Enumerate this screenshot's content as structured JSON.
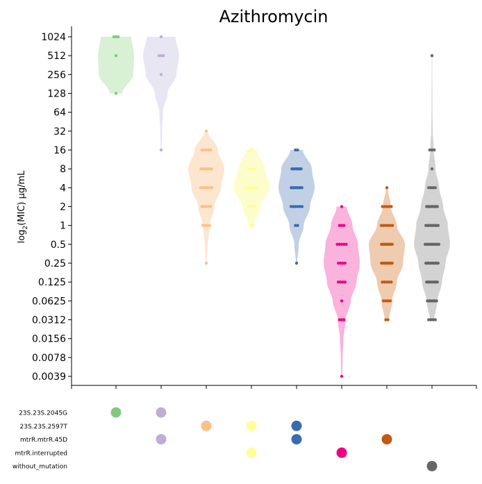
{
  "chart_data": {
    "type": "violin",
    "title": "Azithromycin",
    "ylabel_prefix": "log",
    "ylabel_sub": "2",
    "ylabel_suffix": "(MIC) μg/mL",
    "y_scale": "log2",
    "y_ticks": [
      {
        "value": 1024,
        "label": "1024"
      },
      {
        "value": 512,
        "label": "512"
      },
      {
        "value": 256,
        "label": "256"
      },
      {
        "value": 128,
        "label": "128"
      },
      {
        "value": 64,
        "label": "64"
      },
      {
        "value": 32,
        "label": "32"
      },
      {
        "value": 16,
        "label": "16"
      },
      {
        "value": 8,
        "label": "8"
      },
      {
        "value": 4,
        "label": "4"
      },
      {
        "value": 2,
        "label": "2"
      },
      {
        "value": 1,
        "label": "1"
      },
      {
        "value": 0.5,
        "label": "0.5"
      },
      {
        "value": 0.25,
        "label": "0.25"
      },
      {
        "value": 0.125,
        "label": "0.125"
      },
      {
        "value": 0.0625,
        "label": "0.0625"
      },
      {
        "value": 0.03125,
        "label": "0.0312"
      },
      {
        "value": 0.015625,
        "label": "0.0156"
      },
      {
        "value": 0.0078125,
        "label": "0.0078"
      },
      {
        "value": 0.00390625,
        "label": "0.0039"
      }
    ],
    "ylim": [
      0.0039,
      1024
    ],
    "grid": false,
    "mutations": [
      "23S.23S.2045G",
      "23S.23S.2597T",
      "mtrR.mtrR.45D",
      "mtrR.interrupted",
      "without_mutation"
    ],
    "groups": [
      {
        "violin_color": "#d8f0d4",
        "point_color": "#7fc97f",
        "range": [
          128,
          1024
        ],
        "profile": [
          [
            128,
            0.35
          ],
          [
            256,
            0.95
          ],
          [
            512,
            1.0
          ],
          [
            1024,
            0.85
          ]
        ],
        "points": [
          [
            1024,
            3
          ],
          [
            512,
            1
          ],
          [
            128,
            1
          ]
        ],
        "mutations": [
          "23S.23S.2045G"
        ]
      },
      {
        "violin_color": "#e8e6f3",
        "point_color": "#beaed4",
        "range": [
          16,
          1024
        ],
        "profile": [
          [
            16,
            0.03
          ],
          [
            32,
            0.05
          ],
          [
            64,
            0.1
          ],
          [
            128,
            0.35
          ],
          [
            256,
            0.85
          ],
          [
            512,
            1.0
          ],
          [
            1024,
            0.8
          ]
        ],
        "points": [
          [
            1024,
            1
          ],
          [
            512,
            3
          ],
          [
            256,
            1
          ],
          [
            16,
            1
          ]
        ],
        "mutations": [
          "23S.23S.2045G",
          "mtrR.mtrR.45D"
        ]
      },
      {
        "violin_color": "#fde6d0",
        "point_color": "#fdc086",
        "range": [
          0.25,
          32
        ],
        "profile": [
          [
            0.25,
            0.03
          ],
          [
            0.5,
            0.08
          ],
          [
            1,
            0.2
          ],
          [
            2,
            0.45
          ],
          [
            4,
            0.82
          ],
          [
            8,
            1.0
          ],
          [
            16,
            0.65
          ],
          [
            32,
            0.08
          ]
        ],
        "points": [
          [
            32,
            1
          ],
          [
            16,
            5
          ],
          [
            8,
            8
          ],
          [
            4,
            6
          ],
          [
            2,
            5
          ],
          [
            1,
            4
          ],
          [
            0.25,
            1
          ]
        ],
        "mutations": [
          "23S.23S.2597T"
        ]
      },
      {
        "violin_color": "#fdfdcc",
        "point_color": "#ffff99",
        "range": [
          1,
          16
        ],
        "profile": [
          [
            1,
            0.15
          ],
          [
            2,
            0.5
          ],
          [
            4,
            1.0
          ],
          [
            8,
            0.75
          ],
          [
            16,
            0.3
          ]
        ],
        "points": [
          [
            16,
            2
          ],
          [
            8,
            4
          ],
          [
            4,
            8
          ],
          [
            2,
            4
          ],
          [
            1,
            2
          ]
        ],
        "mutations": [
          "23S.23S.2597T",
          "mtrR.interrupted"
        ]
      },
      {
        "violin_color": "#c2d0e5",
        "point_color": "#386cb0",
        "range": [
          0.25,
          16
        ],
        "profile": [
          [
            0.25,
            0.04
          ],
          [
            0.5,
            0.12
          ],
          [
            1,
            0.4
          ],
          [
            2,
            0.75
          ],
          [
            4,
            1.0
          ],
          [
            8,
            0.85
          ],
          [
            16,
            0.35
          ]
        ],
        "points": [
          [
            16,
            2
          ],
          [
            8,
            7
          ],
          [
            4,
            8
          ],
          [
            2,
            6
          ],
          [
            1,
            2
          ],
          [
            0.25,
            1
          ]
        ],
        "mutations": [
          "23S.23S.2597T",
          "mtrR.mtrR.45D"
        ]
      },
      {
        "violin_color": "#f9b3dc",
        "point_color": "#f0027f",
        "range": [
          0.00390625,
          2
        ],
        "profile": [
          [
            0.00390625,
            0.03
          ],
          [
            0.0078125,
            0.05
          ],
          [
            0.015625,
            0.1
          ],
          [
            0.03125,
            0.22
          ],
          [
            0.0625,
            0.5
          ],
          [
            0.125,
            0.82
          ],
          [
            0.25,
            1.0
          ],
          [
            0.5,
            0.9
          ],
          [
            1,
            0.6
          ],
          [
            2,
            0.28
          ]
        ],
        "points": [
          [
            2,
            1
          ],
          [
            1,
            3
          ],
          [
            0.5,
            5
          ],
          [
            0.25,
            4
          ],
          [
            0.125,
            4
          ],
          [
            0.0625,
            1
          ],
          [
            0.03125,
            3
          ],
          [
            0.00390625,
            1
          ]
        ],
        "mutations": [
          "mtrR.interrupted"
        ]
      },
      {
        "violin_color": "#efcbb0",
        "point_color": "#bf5b17",
        "range": [
          0.03125,
          4
        ],
        "profile": [
          [
            0.03125,
            0.12
          ],
          [
            0.0625,
            0.3
          ],
          [
            0.125,
            0.55
          ],
          [
            0.25,
            0.9
          ],
          [
            0.5,
            1.0
          ],
          [
            1,
            0.55
          ],
          [
            2,
            0.22
          ],
          [
            4,
            0.05
          ]
        ],
        "points": [
          [
            4,
            1
          ],
          [
            2,
            5
          ],
          [
            1,
            6
          ],
          [
            0.5,
            8
          ],
          [
            0.25,
            8
          ],
          [
            0.125,
            5
          ],
          [
            0.0625,
            4
          ],
          [
            0.03125,
            2
          ]
        ],
        "mutations": [
          "mtrR.mtrR.45D"
        ]
      },
      {
        "violin_color": "#d3d3d3",
        "point_color": "#666666",
        "range": [
          0.03125,
          512
        ],
        "profile": [
          [
            0.03125,
            0.12
          ],
          [
            0.0625,
            0.3
          ],
          [
            0.125,
            0.55
          ],
          [
            0.25,
            0.75
          ],
          [
            0.5,
            1.0
          ],
          [
            1,
            0.88
          ],
          [
            2,
            0.62
          ],
          [
            4,
            0.4
          ],
          [
            8,
            0.2
          ],
          [
            16,
            0.1
          ],
          [
            32,
            0.04
          ],
          [
            64,
            0.025
          ],
          [
            128,
            0.02
          ],
          [
            256,
            0.015
          ],
          [
            512,
            0.01
          ]
        ],
        "points": [
          [
            512,
            1
          ],
          [
            16,
            3
          ],
          [
            8,
            1
          ],
          [
            4,
            4
          ],
          [
            2,
            8
          ],
          [
            1,
            9
          ],
          [
            0.5,
            10
          ],
          [
            0.25,
            9
          ],
          [
            0.125,
            8
          ],
          [
            0.0625,
            7
          ],
          [
            0.03125,
            4
          ]
        ],
        "mutations": [
          "without_mutation"
        ]
      }
    ]
  }
}
